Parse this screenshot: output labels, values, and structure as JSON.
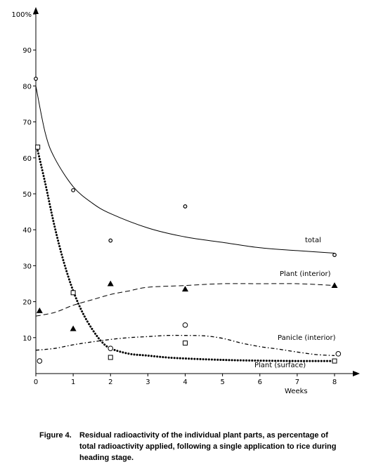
{
  "chart_data": {
    "type": "line",
    "title": "",
    "xlabel": "Weeks",
    "ylabel": "",
    "x_ticks": [
      "0",
      "1",
      "2",
      "3",
      "4",
      "5",
      "6",
      "7",
      "8"
    ],
    "y_ticks": [
      "10",
      "20",
      "30",
      "40",
      "50",
      "60",
      "70",
      "80",
      "90",
      "100%"
    ],
    "xlim": [
      0,
      8
    ],
    "ylim": [
      0,
      100
    ],
    "grid": false,
    "series": [
      {
        "name": "total",
        "line_style": "solid",
        "marker": "dot-circle",
        "points": [
          [
            0,
            82
          ],
          [
            1,
            51
          ],
          [
            2,
            37
          ],
          [
            4,
            46.5
          ],
          [
            8,
            33
          ]
        ],
        "curve": [
          [
            0,
            80
          ],
          [
            0.25,
            67
          ],
          [
            0.5,
            60
          ],
          [
            1,
            52
          ],
          [
            1.5,
            47.5
          ],
          [
            2,
            44.5
          ],
          [
            3,
            40.5
          ],
          [
            4,
            38
          ],
          [
            5,
            36.5
          ],
          [
            6,
            35
          ],
          [
            7,
            34.2
          ],
          [
            8,
            33.5
          ]
        ]
      },
      {
        "name": "Plant  (interior)",
        "line_style": "dashed",
        "marker": "filled-triangle",
        "points": [
          [
            0.1,
            17.5
          ],
          [
            1,
            12.5
          ],
          [
            2,
            25
          ],
          [
            4,
            23.5
          ],
          [
            8,
            24.5
          ]
        ],
        "curve": [
          [
            0,
            16
          ],
          [
            0.5,
            17
          ],
          [
            1,
            19
          ],
          [
            1.5,
            20.5
          ],
          [
            2,
            22
          ],
          [
            2.5,
            23
          ],
          [
            3,
            24
          ],
          [
            4,
            24.5
          ],
          [
            5,
            25
          ],
          [
            6,
            25
          ],
          [
            7,
            25
          ],
          [
            8,
            24.5
          ]
        ]
      },
      {
        "name": "Panicle  (interior)",
        "line_style": "dash-dot",
        "marker": "open-circle",
        "points": [
          [
            0.1,
            3.5
          ],
          [
            2,
            7
          ],
          [
            4,
            13.5
          ],
          [
            8.1,
            5.5
          ]
        ],
        "curve": [
          [
            0,
            6.5
          ],
          [
            0.5,
            7
          ],
          [
            1,
            8
          ],
          [
            1.5,
            8.8
          ],
          [
            2,
            9.5
          ],
          [
            2.5,
            10
          ],
          [
            3,
            10.3
          ],
          [
            3.5,
            10.6
          ],
          [
            4,
            10.6
          ],
          [
            4.5,
            10.5
          ],
          [
            5,
            9.8
          ],
          [
            5.5,
            8.5
          ],
          [
            6,
            7.5
          ],
          [
            6.5,
            6.8
          ],
          [
            7,
            6
          ],
          [
            7.5,
            5.3
          ],
          [
            8,
            5
          ]
        ]
      },
      {
        "name": "Plant  (surface)",
        "line_style": "dotted",
        "marker": "open-square",
        "points": [
          [
            0.05,
            63
          ],
          [
            1,
            22.5
          ],
          [
            2,
            4.5
          ],
          [
            4,
            8.5
          ],
          [
            8,
            3.5
          ]
        ],
        "curve": [
          [
            0.05,
            62
          ],
          [
            0.25,
            53
          ],
          [
            0.5,
            41
          ],
          [
            0.75,
            31
          ],
          [
            1,
            23
          ],
          [
            1.25,
            17
          ],
          [
            1.5,
            12.5
          ],
          [
            1.75,
            9
          ],
          [
            2,
            7
          ],
          [
            2.5,
            5.5
          ],
          [
            3,
            5
          ],
          [
            3.5,
            4.5
          ],
          [
            4,
            4.2
          ],
          [
            5,
            3.8
          ],
          [
            6,
            3.6
          ],
          [
            7,
            3.5
          ],
          [
            8,
            3.5
          ]
        ]
      }
    ]
  },
  "caption": {
    "lead": "Figure 4.",
    "lines": [
      "Residual radioactivity of the individual plant parts, as percentage of",
      "total radioactivity applied, following a single application to rice during",
      "heading stage."
    ]
  }
}
